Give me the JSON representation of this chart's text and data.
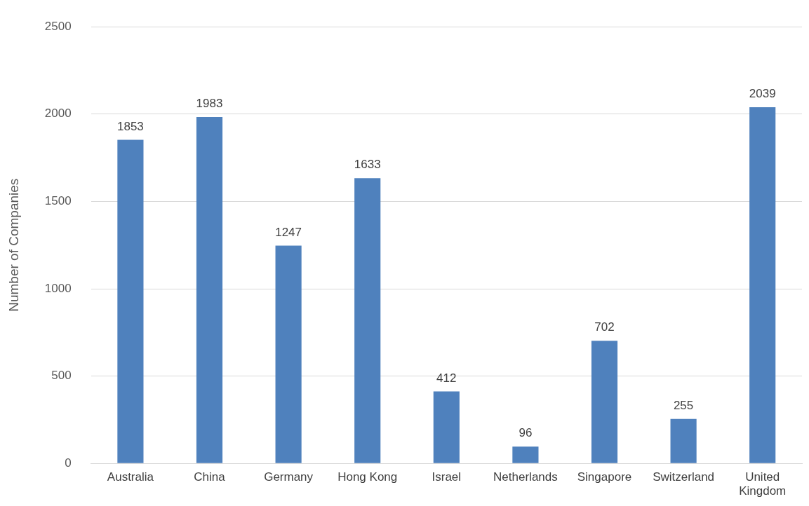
{
  "chart_data": {
    "type": "bar",
    "ylabel": "Number of Companies",
    "categories": [
      "Australia",
      "China",
      "Germany",
      "Hong Kong",
      "Israel",
      "Netherlands",
      "Singapore",
      "Switzerland",
      "United Kingdom"
    ],
    "values": [
      1853,
      1983,
      1247,
      1633,
      412,
      96,
      702,
      255,
      2039
    ],
    "color": "#4f81bd",
    "ylim": [
      0,
      2500
    ],
    "yticks": [
      0,
      500,
      1000,
      1500,
      2000,
      2500
    ],
    "grid": "y",
    "data_labels": true
  }
}
